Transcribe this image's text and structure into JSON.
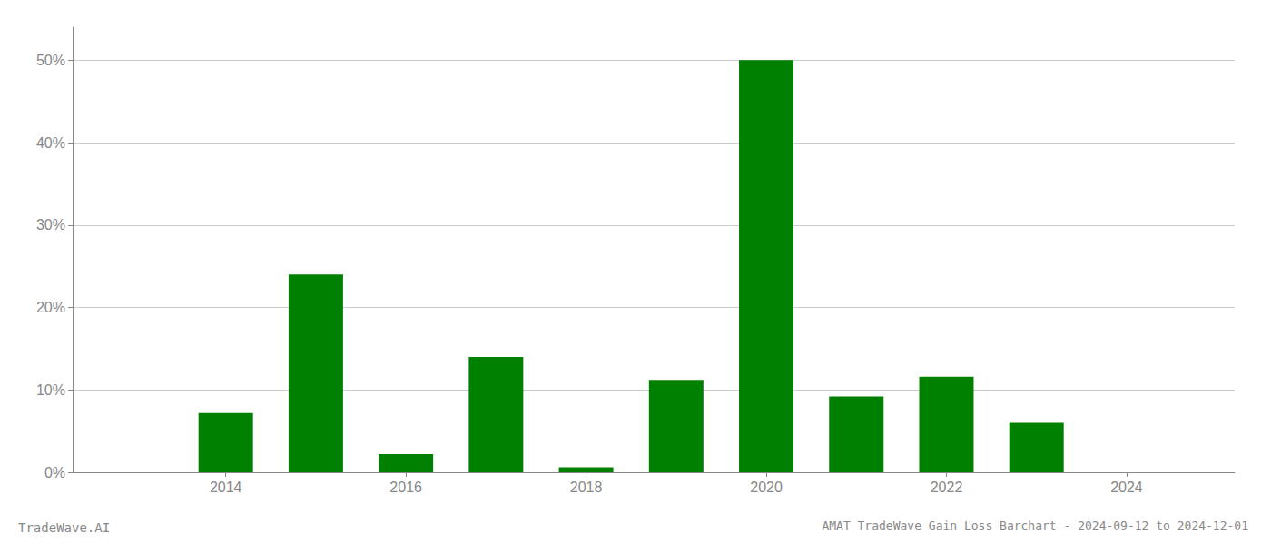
{
  "chart_data": {
    "type": "bar",
    "title": "AMAT TradeWave Gain Loss Barchart - 2024-09-12 to 2024-12-01",
    "annotations": [
      "TradeWave.AI"
    ],
    "x": [
      2013,
      2014,
      2015,
      2016,
      2017,
      2018,
      2019,
      2020,
      2021,
      2022,
      2023,
      2024
    ],
    "values": [
      0.0,
      7.2,
      24.0,
      2.2,
      14.0,
      0.6,
      11.2,
      50.0,
      9.2,
      11.6,
      6.0,
      0.0
    ],
    "color": "#008000",
    "xlim": [
      2012.3,
      2025.2
    ],
    "xticks": [
      2014,
      2016,
      2018,
      2020,
      2022,
      2024
    ],
    "ylim": [
      0,
      54
    ],
    "yticks": [
      {
        "value": 0,
        "label": "0%"
      },
      {
        "value": 10,
        "label": "10%"
      },
      {
        "value": 20,
        "label": "20%"
      },
      {
        "value": 30,
        "label": "30%"
      },
      {
        "value": 40,
        "label": "40%"
      },
      {
        "value": 50,
        "label": "50%"
      }
    ],
    "grid": true
  }
}
